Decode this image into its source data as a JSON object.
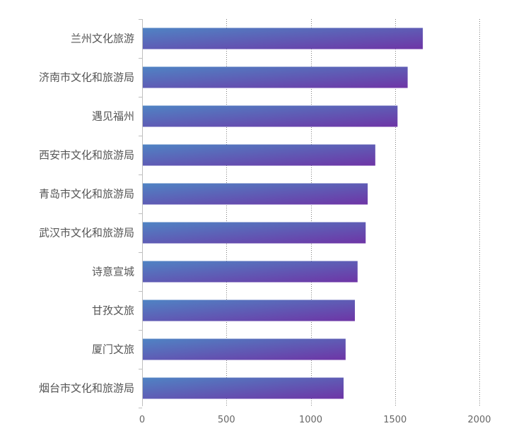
{
  "chart_data": {
    "type": "bar",
    "orientation": "horizontal",
    "title": "",
    "xlabel": "",
    "ylabel": "",
    "categories": [
      "兰州文化旅游",
      "济南市文化和旅游局",
      "遇见福州",
      "西安市文化和旅游局",
      "青岛市文化和旅游局",
      "武汉市文化和旅游局",
      "诗意宣城",
      "甘孜文旅",
      "厦门文旅",
      "烟台市文化和旅游局"
    ],
    "values": [
      1665,
      1575,
      1515,
      1383,
      1338,
      1326,
      1278,
      1262,
      1207,
      1195
    ],
    "xlim": [
      0,
      2000
    ],
    "x_ticks": [
      "0",
      "500",
      "1000",
      "1500",
      "2000"
    ],
    "grid": "vertical-dotted",
    "legend": "none",
    "colors": {
      "bar_start": "#4f84c4",
      "bar_end": "#6e35a6",
      "axis": "#bfbfbf",
      "grid": "#7f7f7f",
      "label": "#555555"
    }
  }
}
